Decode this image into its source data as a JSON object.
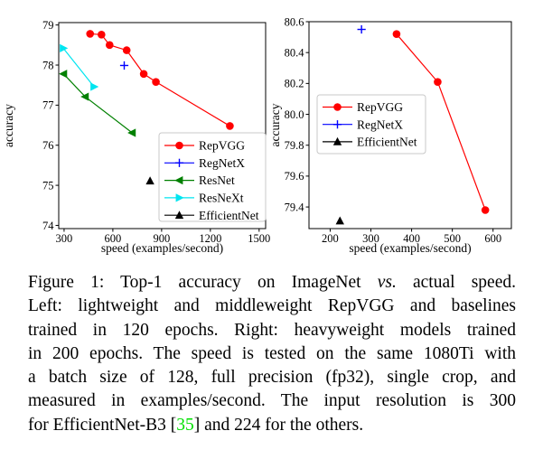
{
  "figure": {
    "caption_lines": [
      [
        {
          "t": "Figure 1:  Top-1 accuracy on ImageNet "
        },
        {
          "t": "vs.",
          "s": "i"
        },
        {
          "t": " actual speed."
        }
      ],
      [
        {
          "t": "Left: lightweight and middleweight RepVGG and baselines"
        }
      ],
      [
        {
          "t": "trained in 120 epochs.  Right: heavyweight models trained"
        }
      ],
      [
        {
          "t": "in 200 epochs. The speed is tested on the same 1080Ti with"
        }
      ],
      [
        {
          "t": "a batch size of 128, full precision (fp32), single crop, and"
        }
      ],
      [
        {
          "t": "measured in examples/second.  The input resolution is 300"
        }
      ],
      [
        {
          "t": "for EfficientNet-B3 ["
        },
        {
          "t": "35",
          "s": "g"
        },
        {
          "t": "] and 224 for the others."
        }
      ]
    ],
    "citation_ref": "35",
    "citation_color": "#00e000"
  },
  "chart_data": [
    {
      "type": "line",
      "panel": "left",
      "title": "",
      "xlabel": "speed (examples/second)",
      "ylabel": "accuracy",
      "xlim": [
        267,
        1540
      ],
      "ylim": [
        73.92,
        79.06
      ],
      "xticks": [
        300,
        600,
        900,
        1200,
        1500
      ],
      "xtick_labels": [
        "300",
        "600",
        "900",
        "1200",
        "1500"
      ],
      "yticks": [
        74,
        75,
        76,
        77,
        78,
        79
      ],
      "ytick_labels": [
        "74",
        "75",
        "76",
        "77",
        "78",
        "79"
      ],
      "grid": false,
      "legend_position": "lower right",
      "series": [
        {
          "name": "RepVGG",
          "color": "#ff0000",
          "marker": "circle",
          "line": true,
          "points": [
            [
              460,
              78.78
            ],
            [
              530,
              78.76
            ],
            [
              580,
              78.5
            ],
            [
              685,
              78.37
            ],
            [
              790,
              77.78
            ],
            [
              865,
              77.58
            ],
            [
              1320,
              76.48
            ]
          ]
        },
        {
          "name": "RegNetX",
          "color": "#0000ff",
          "marker": "plus",
          "line": true,
          "points": [
            [
              670,
              77.99
            ]
          ]
        },
        {
          "name": "ResNet",
          "color": "#008000",
          "marker": "triangle-left",
          "line": true,
          "points": [
            [
              297,
              77.78
            ],
            [
              430,
              77.21
            ],
            [
              719,
              76.31
            ]
          ]
        },
        {
          "name": "ResNeXt",
          "color": "#00e5f0",
          "marker": "triangle-right",
          "line": true,
          "points": [
            [
              295,
              78.42
            ],
            [
              484,
              77.46
            ]
          ]
        },
        {
          "name": "EfficientNet",
          "color": "#000000",
          "marker": "triangle-up",
          "line": true,
          "points": [
            [
              829,
              75.11
            ]
          ]
        }
      ]
    },
    {
      "type": "line",
      "panel": "right",
      "title": "",
      "xlabel": "speed (examples/second)",
      "ylabel": "accuracy",
      "xlim": [
        148,
        645
      ],
      "ylim": [
        79.26,
        80.6
      ],
      "xticks": [
        200,
        300,
        400,
        500,
        600
      ],
      "xtick_labels": [
        "200",
        "300",
        "400",
        "500",
        "600"
      ],
      "yticks": [
        79.4,
        79.6,
        79.8,
        80.0,
        80.2,
        80.4,
        80.6
      ],
      "ytick_labels": [
        "79.4",
        "79.6",
        "79.8",
        "80.0",
        "80.2",
        "80.4",
        "80.6"
      ],
      "grid": false,
      "legend_position": "center left",
      "series": [
        {
          "name": "RepVGG",
          "color": "#ff0000",
          "marker": "circle",
          "line": true,
          "points": [
            [
              363,
              80.52
            ],
            [
              464,
              80.21
            ],
            [
              581,
              79.38
            ]
          ]
        },
        {
          "name": "RegNetX",
          "color": "#0000ff",
          "marker": "plus",
          "line": true,
          "points": [
            [
              277,
              80.55
            ]
          ]
        },
        {
          "name": "EfficientNet",
          "color": "#000000",
          "marker": "triangle-up",
          "line": true,
          "points": [
            [
              224,
              79.31
            ]
          ]
        }
      ]
    }
  ]
}
